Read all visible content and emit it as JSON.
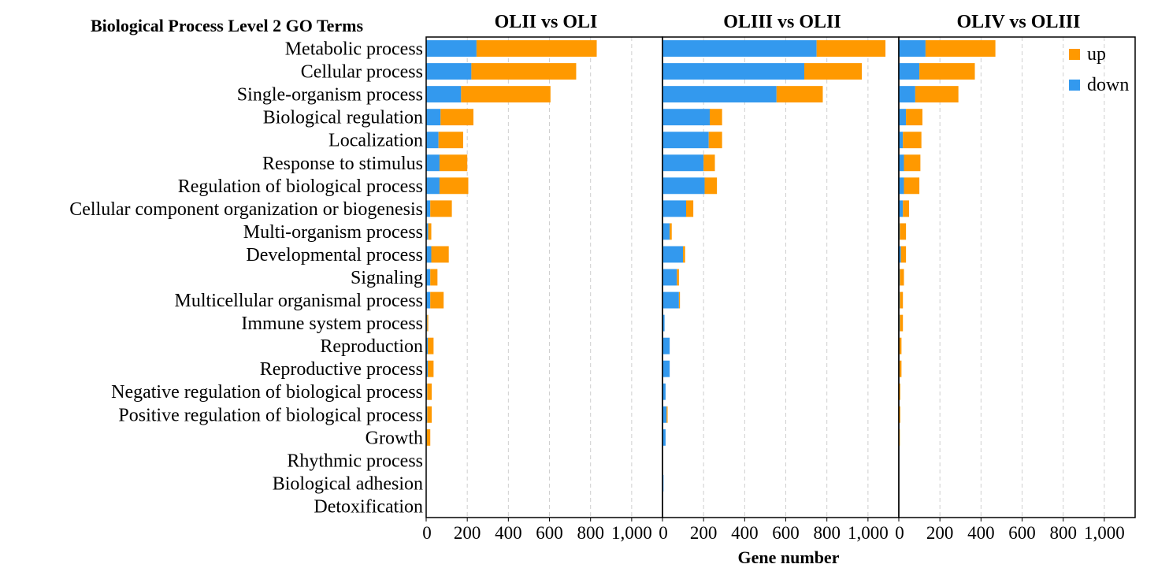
{
  "chart_data": {
    "type": "bar",
    "orientation": "horizontal",
    "stacked": true,
    "header_title": "Biological Process Level 2 GO Terms",
    "xlabel": "Gene number",
    "xlim": [
      0,
      1150
    ],
    "xticks": [
      0,
      200,
      400,
      600,
      800,
      1000
    ],
    "xtick_labels": [
      "0",
      "200",
      "400",
      "600",
      "800",
      "1,000"
    ],
    "grid": "vertical-dashed",
    "legend_position": "top-right",
    "colors": {
      "up": "#FF9900",
      "down": "#3399EE"
    },
    "legend": [
      "up",
      "down"
    ],
    "categories": [
      "Metabolic process",
      "Cellular process",
      "Single-organism process",
      "Biological regulation",
      "Localization",
      "Response to stimulus",
      "Regulation of biological process",
      "Cellular component organization or biogenesis",
      "Multi-organism process",
      "Developmental process",
      "Signaling",
      "Multicellular organismal process",
      "Immune system process",
      "Reproduction",
      "Reproductive process",
      "Negative regulation of biological process",
      "Positive regulation of biological process",
      "Growth",
      "Rhythmic process",
      "Biological adhesion",
      "Detoxification"
    ],
    "panels": [
      {
        "title": "OLII vs OLI",
        "series": [
          {
            "name": "down",
            "values": [
              245,
              220,
              170,
              70,
              60,
              65,
              65,
              20,
              10,
              25,
              20,
              20,
              5,
              8,
              8,
              5,
              5,
              3,
              0,
              0,
              0
            ]
          },
          {
            "name": "up",
            "values": [
              585,
              510,
              435,
              160,
              120,
              135,
              140,
              105,
              15,
              85,
              35,
              65,
              5,
              28,
              28,
              22,
              22,
              17,
              0,
              0,
              0
            ]
          }
        ]
      },
      {
        "title": "OLIII vs OLII",
        "series": [
          {
            "name": "down",
            "values": [
              750,
              690,
              555,
              230,
              225,
              200,
              205,
              115,
              35,
              100,
              70,
              80,
              10,
              35,
              35,
              15,
              20,
              15,
              0,
              5,
              0
            ]
          },
          {
            "name": "up",
            "values": [
              335,
              280,
              225,
              60,
              65,
              55,
              60,
              35,
              10,
              10,
              10,
              5,
              0,
              0,
              0,
              0,
              5,
              0,
              0,
              0,
              0
            ]
          }
        ]
      },
      {
        "title": "OLIV vs OLIII",
        "series": [
          {
            "name": "down",
            "values": [
              130,
              100,
              80,
              35,
              20,
              25,
              25,
              20,
              5,
              10,
              5,
              5,
              5,
              3,
              3,
              2,
              2,
              2,
              0,
              0,
              0
            ]
          },
          {
            "name": "up",
            "values": [
              340,
              270,
              210,
              80,
              90,
              80,
              75,
              30,
              30,
              25,
              20,
              15,
              15,
              10,
              10,
              5,
              5,
              3,
              0,
              0,
              0
            ]
          }
        ]
      }
    ]
  }
}
